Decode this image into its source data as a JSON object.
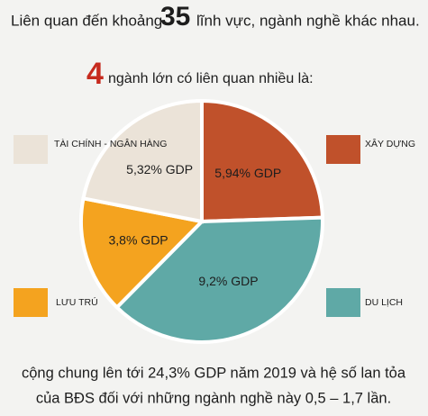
{
  "chart_data": {
    "type": "pie",
    "title_parts": [
      "Liên quan đến khoảng",
      "35",
      "lĩnh vực, ngành nghề khác nhau."
    ],
    "subtitle_parts": [
      "4",
      "ngành lớn có liên quan nhiều là:"
    ],
    "categories": [
      "XÂY DỰNG",
      "DU LỊCH",
      "LƯU TRÚ",
      "TÀI CHÍNH - NGÂN HÀNG"
    ],
    "values": [
      5.94,
      9.2,
      3.8,
      5.32
    ],
    "value_labels": [
      "5,94% GDP",
      "9,2% GDP",
      "3,8% GDP",
      "5,32% GDP"
    ],
    "colors": [
      "#c0512b",
      "#5fa9a6",
      "#f4a31f",
      "#ebe3d8"
    ],
    "footer_lines": [
      "cộng chung lên tới 24,3% GDP năm 2019 và hệ số lan tỏa",
      "của BĐS đối với những ngành nghề này 0,5 – 1,7 lần."
    ]
  }
}
